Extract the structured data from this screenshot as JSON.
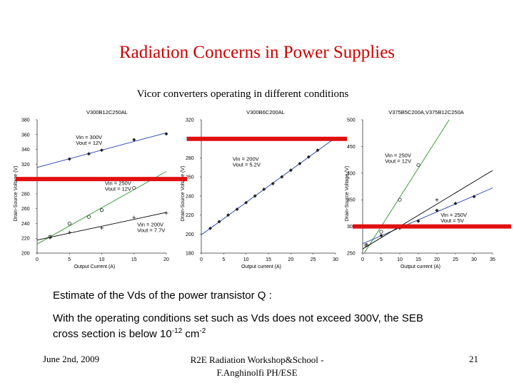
{
  "slide": {
    "title": "Radiation Concerns in Power Supplies",
    "subtitle": "Vicor converters operating in different conditions",
    "body_line1": "Estimate of the Vds of the power transistor Q :",
    "body_line2a": "With the operating conditions set such  as Vds does not exceed 300V, the SEB",
    "body_line2b": "cross section is below 10",
    "exp1": "-12",
    "unit": " cm",
    "exp2": "-2"
  },
  "footer": {
    "date": "June 2nd, 2009",
    "line1": "R2E Radiation Workshop&School -",
    "line2": "F.Anghinolfi PH/ESE",
    "page": "21"
  },
  "colors": {
    "title": "#cc0000",
    "threshold_line": "#e01010",
    "blue": "#1f3fb0",
    "green": "#2a9a2a",
    "red_series": "#cc2020"
  },
  "chart_data": [
    {
      "type": "scatter",
      "title": "V300B12C250AL",
      "xlabel": "Output Current (A)",
      "ylabel": "Drain-Source Voltage (V)",
      "xlim": [
        0,
        20
      ],
      "ylim": [
        200,
        380
      ],
      "xticks": [
        "0",
        "5",
        "10",
        "15",
        "20"
      ],
      "yticks": [
        "200",
        "220",
        "240",
        "260",
        "280",
        "300",
        "320",
        "340",
        "360",
        "380"
      ],
      "threshold": 300,
      "series": [
        {
          "color": "blue",
          "marker": "diamond",
          "x": [
            5,
            8,
            10,
            15,
            20
          ],
          "y": [
            327,
            334,
            339,
            353,
            361
          ],
          "label": [
            "Vin = 300V",
            "Vout = 12V"
          ],
          "label_pos": [
            6,
            354
          ]
        },
        {
          "color": "green",
          "marker": "circle",
          "x": [
            2,
            5,
            8,
            10,
            15
          ],
          "y": [
            222,
            240,
            249,
            258,
            288
          ],
          "label": [
            "Vin = 250V",
            "Vout = 12V"
          ],
          "label_pos": [
            10.5,
            292
          ]
        },
        {
          "color": "red",
          "marker": "plus",
          "x": [
            2,
            5,
            10,
            15,
            20
          ],
          "y": [
            221,
            228,
            234,
            248,
            254
          ],
          "label": [
            "Vin = 200V",
            "Vout = 7.7V"
          ],
          "label_pos": [
            15.5,
            236
          ]
        }
      ]
    },
    {
      "type": "scatter",
      "title": "V300B6C200AL",
      "xlabel": "Output current (A)",
      "ylabel": "Drain-Source Voltage (V)",
      "xlim": [
        0,
        30
      ],
      "ylim": [
        180,
        320
      ],
      "xticks": [
        "0",
        "5",
        "10",
        "15",
        "20",
        "25",
        "30"
      ],
      "yticks": [
        "180",
        "200",
        "220",
        "240",
        "260",
        "280",
        "300",
        "320"
      ],
      "threshold": 300,
      "series": [
        {
          "color": "blue",
          "marker": "diamond",
          "x": [
            2,
            4,
            6,
            8,
            10,
            12,
            14,
            16,
            18,
            20,
            22,
            24,
            26
          ],
          "y": [
            206,
            213,
            220,
            226,
            233,
            240,
            247,
            253,
            260,
            267,
            274,
            281,
            288
          ],
          "label": [
            "Vin = 200V",
            "Vout = 5.2V"
          ],
          "label_pos": [
            7,
            277
          ]
        }
      ]
    },
    {
      "type": "scatter",
      "title": "V375B5C200A,V375B12C250A",
      "xlabel": "Output current (A)",
      "ylabel": "Drain-Source Voltage (V)",
      "xlim": [
        0,
        35
      ],
      "ylim": [
        250,
        500
      ],
      "xticks": [
        "0",
        "5",
        "10",
        "15",
        "20",
        "25",
        "30",
        "35"
      ],
      "yticks": [
        "250",
        "300",
        "350",
        "400",
        "450",
        "500"
      ],
      "threshold": 300,
      "series": [
        {
          "color": "green",
          "marker": "circle",
          "x": [
            1,
            5,
            10,
            15
          ],
          "y": [
            265,
            290,
            350,
            415
          ],
          "label": [
            "Vin = 250V",
            "Vout = 12V"
          ],
          "label_pos": [
            6,
            430
          ]
        },
        {
          "color": "blue",
          "marker": "diamond",
          "x": [
            5,
            10,
            15,
            20,
            25,
            30
          ],
          "y": [
            283,
            297,
            310,
            330,
            343,
            356
          ],
          "label": [
            "Vin = 250V",
            "Vout = 5V"
          ],
          "label_pos": [
            21,
            318
          ]
        },
        {
          "color": "red",
          "marker": "plus",
          "x": [
            1,
            15,
            20
          ],
          "y": [
            265,
            310,
            350
          ],
          "label": null,
          "label_pos": null
        }
      ]
    }
  ]
}
